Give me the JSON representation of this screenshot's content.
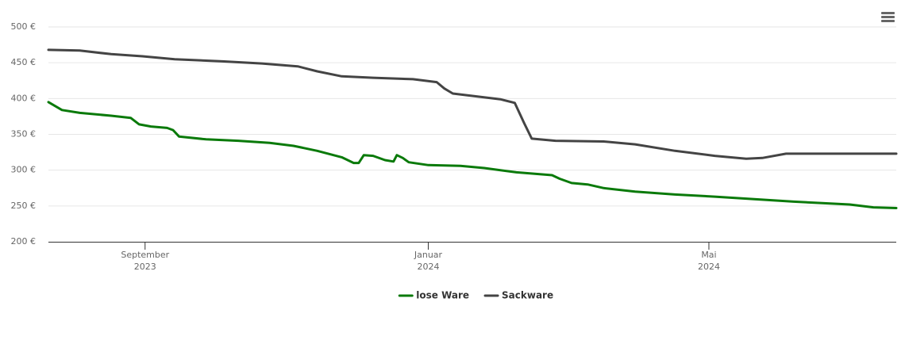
{
  "chart_data": {
    "type": "line",
    "xlim": [
      2023.552,
      2024.552
    ],
    "xticks": [
      {
        "value": 2023.666,
        "label": "September 2023"
      },
      {
        "value": 2024.0,
        "label": "Januar 2024"
      },
      {
        "value": 2024.331,
        "label": "Mai 2024"
      }
    ],
    "ylim": [
      200,
      500
    ],
    "yticks": [
      {
        "value": 200,
        "label": "200 €"
      },
      {
        "value": 250,
        "label": "250 €"
      },
      {
        "value": 300,
        "label": "300 €"
      },
      {
        "value": 350,
        "label": "350 €"
      },
      {
        "value": 400,
        "label": "400 €"
      },
      {
        "value": 450,
        "label": "450 €"
      },
      {
        "value": 500,
        "label": "500 €"
      }
    ],
    "grid": true,
    "legend": "bottom",
    "series": [
      {
        "name": "lose Ware",
        "color": "#0a7a0a",
        "x": [
          2023.552,
          2023.568,
          2023.589,
          2023.626,
          2023.649,
          2023.659,
          2023.673,
          2023.692,
          2023.699,
          2023.706,
          2023.738,
          2023.776,
          2023.813,
          2023.841,
          2023.869,
          2023.898,
          2023.912,
          2023.918,
          2023.924,
          2023.935,
          2023.949,
          2023.959,
          2023.963,
          2023.97,
          2023.977,
          2024.0,
          2024.038,
          2024.066,
          2024.104,
          2024.146,
          2024.155,
          2024.169,
          2024.188,
          2024.207,
          2024.244,
          2024.291,
          2024.338,
          2024.431,
          2024.497,
          2024.525,
          2024.552
        ],
        "values": [
          395,
          384,
          380,
          376,
          373,
          364,
          361,
          359,
          356,
          347,
          343,
          341,
          338,
          334,
          327,
          318,
          310,
          310,
          321,
          320,
          314,
          312,
          321,
          317,
          311,
          307,
          306,
          303,
          297,
          293,
          288,
          282,
          280,
          275,
          270,
          266,
          263,
          256,
          252,
          248,
          247
        ]
      },
      {
        "name": "Sackware",
        "color": "#444444",
        "x": [
          2023.552,
          2023.589,
          2023.626,
          2023.663,
          2023.701,
          2023.757,
          2023.804,
          2023.846,
          2023.869,
          2023.898,
          2023.935,
          2023.982,
          2024.01,
          2024.019,
          2024.029,
          2024.057,
          2024.085,
          2024.102,
          2024.113,
          2024.122,
          2024.15,
          2024.207,
          2024.244,
          2024.291,
          2024.338,
          2024.375,
          2024.394,
          2024.422,
          2024.45,
          2024.552
        ],
        "values": [
          468,
          467,
          462,
          459,
          455,
          452,
          449,
          445,
          438,
          431,
          429,
          427,
          423,
          414,
          407,
          403,
          399,
          394,
          366,
          344,
          341,
          340,
          336,
          327,
          320,
          316,
          317,
          323,
          323,
          323
        ]
      }
    ]
  }
}
